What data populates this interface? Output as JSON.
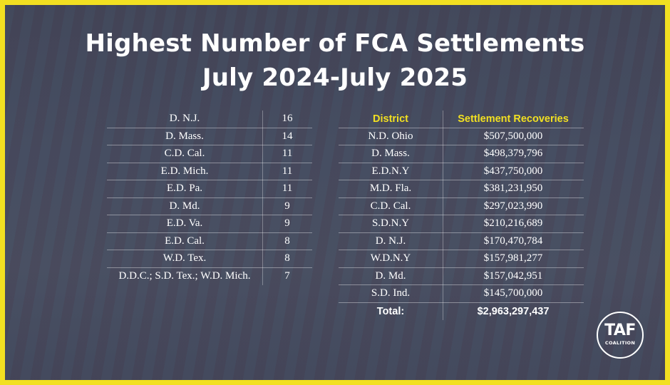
{
  "title": {
    "line1": "Highest Number of FCA Settlements",
    "line2": "July 2024-July 2025"
  },
  "left_table": {
    "rows": [
      {
        "district": "D. N.J.",
        "count": "16"
      },
      {
        "district": "D. Mass.",
        "count": "14"
      },
      {
        "district": "C.D. Cal.",
        "count": "11"
      },
      {
        "district": "E.D. Mich.",
        "count": "11"
      },
      {
        "district": "E.D. Pa.",
        "count": "11"
      },
      {
        "district": "D. Md.",
        "count": "9"
      },
      {
        "district": "E.D. Va.",
        "count": "9"
      },
      {
        "district": "E.D. Cal.",
        "count": "8"
      },
      {
        "district": "W.D. Tex.",
        "count": "8"
      },
      {
        "district": "D.D.C.; S.D. Tex.; W.D. Mich.",
        "count": "7"
      }
    ]
  },
  "right_table": {
    "headers": {
      "district": "District",
      "recoveries": "Settlement Recoveries"
    },
    "rows": [
      {
        "district": "N.D. Ohio",
        "amount": "$507,500,000"
      },
      {
        "district": "D. Mass.",
        "amount": "$498,379,796"
      },
      {
        "district": "E.D.N.Y",
        "amount": "$437,750,000"
      },
      {
        "district": "M.D. Fla.",
        "amount": "$381,231,950"
      },
      {
        "district": "C.D. Cal.",
        "amount": "$297,023,990"
      },
      {
        "district": "S.D.N.Y",
        "amount": "$210,216,689"
      },
      {
        "district": "D. N.J.",
        "amount": "$170,470,784"
      },
      {
        "district": "W.D.N.Y",
        "amount": "$157,981,277"
      },
      {
        "district": "D. Md.",
        "amount": "$157,042,951"
      },
      {
        "district": "S.D. Ind.",
        "amount": "$145,700,000"
      }
    ],
    "total": {
      "label": "Total:",
      "amount": "$2,963,297,437"
    }
  },
  "logo": {
    "main": "TAF",
    "sub": "COALITION"
  },
  "colors": {
    "border": "#f2e021",
    "header_text": "#f2e021",
    "background": "#424a5e"
  }
}
